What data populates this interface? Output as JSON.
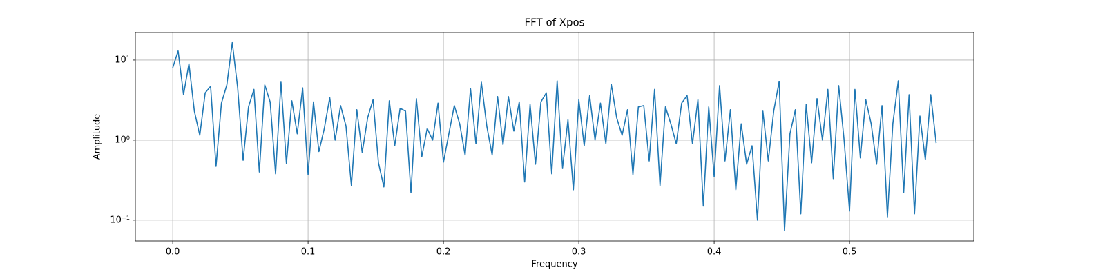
{
  "chart_data": {
    "type": "line",
    "title": "FFT of Xpos",
    "x_label": "Frequency",
    "y_label": "Amplitude",
    "x": [
      0,
      0.004,
      0.008,
      0.012,
      0.016,
      0.02,
      0.024,
      0.028,
      0.032,
      0.036,
      0.04,
      0.044,
      0.048,
      0.052,
      0.056,
      0.06,
      0.064,
      0.068,
      0.072,
      0.076,
      0.08,
      0.084,
      0.088,
      0.092,
      0.096,
      0.1,
      0.104,
      0.108,
      0.112,
      0.116,
      0.12,
      0.124,
      0.128,
      0.132,
      0.136,
      0.14,
      0.144,
      0.148,
      0.152,
      0.156,
      0.16,
      0.164,
      0.168,
      0.172,
      0.176,
      0.18,
      0.184,
      0.188,
      0.192,
      0.196,
      0.2,
      0.204,
      0.208,
      0.212,
      0.216,
      0.22,
      0.224,
      0.228,
      0.232,
      0.236,
      0.24,
      0.244,
      0.248,
      0.252,
      0.256,
      0.26,
      0.264,
      0.268,
      0.272,
      0.276,
      0.28,
      0.284,
      0.288,
      0.292,
      0.296,
      0.3,
      0.304,
      0.308,
      0.312,
      0.316,
      0.32,
      0.324,
      0.328,
      0.332,
      0.336,
      0.34,
      0.344,
      0.348,
      0.352,
      0.356,
      0.36,
      0.364,
      0.368,
      0.372,
      0.376,
      0.38,
      0.384,
      0.388,
      0.392,
      0.396,
      0.4,
      0.404,
      0.408,
      0.412,
      0.416,
      0.42,
      0.424,
      0.428,
      0.432,
      0.436,
      0.44,
      0.444,
      0.448,
      0.452,
      0.456,
      0.46,
      0.464,
      0.468,
      0.472,
      0.476,
      0.48,
      0.484,
      0.488,
      0.492,
      0.496,
      0.5,
      0.504,
      0.508,
      0.512,
      0.516,
      0.52,
      0.524,
      0.528,
      0.532,
      0.536,
      0.54,
      0.544,
      0.548,
      0.552,
      0.556,
      0.56,
      0.564
    ],
    "values": [
      8,
      13,
      3.7,
      9,
      2.3,
      1.15,
      3.9,
      4.7,
      0.47,
      2.9,
      4.9,
      16.5,
      4.5,
      0.56,
      2.6,
      4.3,
      0.4,
      4.9,
      3.0,
      0.38,
      5.3,
      0.51,
      3.1,
      1.2,
      4.5,
      0.37,
      3.0,
      0.72,
      1.4,
      3.4,
      1.0,
      2.7,
      1.5,
      0.27,
      2.4,
      0.7,
      1.9,
      3.2,
      0.52,
      0.26,
      3.1,
      0.85,
      2.5,
      2.3,
      0.22,
      3.3,
      0.62,
      1.4,
      1.0,
      2.9,
      0.53,
      1.2,
      2.7,
      1.6,
      0.65,
      4.4,
      0.9,
      5.3,
      1.5,
      0.65,
      3.5,
      0.88,
      3.5,
      1.3,
      3.0,
      0.3,
      2.8,
      0.5,
      3.0,
      3.9,
      0.38,
      5.5,
      0.45,
      1.8,
      0.24,
      3.2,
      0.85,
      3.6,
      1.0,
      2.9,
      0.9,
      5.0,
      1.9,
      1.15,
      2.4,
      0.37,
      2.6,
      2.7,
      0.55,
      4.3,
      0.27,
      2.6,
      1.6,
      0.9,
      2.9,
      3.6,
      0.9,
      3.2,
      0.15,
      2.6,
      0.35,
      4.8,
      0.55,
      2.4,
      0.24,
      1.6,
      0.5,
      0.85,
      0.1,
      2.3,
      0.55,
      2.3,
      5.4,
      0.074,
      1.2,
      2.4,
      0.12,
      2.8,
      0.52,
      3.3,
      1.0,
      4.3,
      0.33,
      4.8,
      1.0,
      0.13,
      4.3,
      0.6,
      3.2,
      1.6,
      0.5,
      2.7,
      0.11,
      1.6,
      5.5,
      0.22,
      3.7,
      0.12,
      2.0,
      0.57,
      3.7,
      0.92
    ],
    "color": "#1f77b4",
    "xlim": [
      -0.0276,
      0.5918
    ],
    "xticks": [
      {
        "value": 0,
        "label": "0.0"
      },
      {
        "value": 0.1,
        "label": "0.1"
      },
      {
        "value": 0.2,
        "label": "0.2"
      },
      {
        "value": 0.3,
        "label": "0.3"
      },
      {
        "value": 0.4,
        "label": "0.4"
      },
      {
        "value": 0.5,
        "label": "0.5"
      }
    ],
    "ylim": [
      0.055,
      22.1
    ],
    "y_log": true,
    "yticks": [
      {
        "value": 0.1,
        "label": "10⁻¹"
      },
      {
        "value": 1,
        "label": "10⁰"
      },
      {
        "value": 10,
        "label": "10¹"
      }
    ],
    "grid": true
  }
}
